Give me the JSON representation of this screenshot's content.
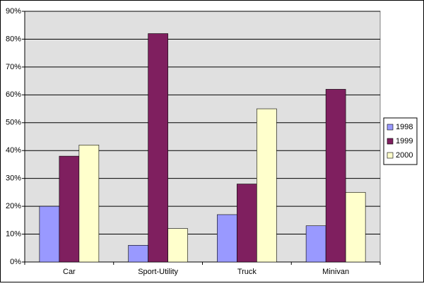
{
  "chart_data": {
    "type": "bar",
    "categories": [
      "Car",
      "Sport-Utility",
      "Truck",
      "Minivan"
    ],
    "series": [
      {
        "name": "1998",
        "color": "#9999ff",
        "values": [
          20,
          6,
          17,
          13
        ]
      },
      {
        "name": "1999",
        "color": "#7f1f5f",
        "values": [
          38,
          82,
          28,
          62
        ]
      },
      {
        "name": "2000",
        "color": "#ffffcc",
        "values": [
          42,
          12,
          55,
          25
        ]
      }
    ],
    "ylim": [
      0,
      90
    ],
    "yticks": [
      {
        "value": 0,
        "label": "0%"
      },
      {
        "value": 10,
        "label": "10%"
      },
      {
        "value": 20,
        "label": "20%"
      },
      {
        "value": 30,
        "label": "30%"
      },
      {
        "value": 40,
        "label": "40%"
      },
      {
        "value": 50,
        "label": "50%"
      },
      {
        "value": 60,
        "label": "60%"
      },
      {
        "value": 70,
        "label": "70%"
      },
      {
        "value": 80,
        "label": "80%"
      },
      {
        "value": 90,
        "label": "90%"
      }
    ],
    "grid": true,
    "legend": "right"
  }
}
